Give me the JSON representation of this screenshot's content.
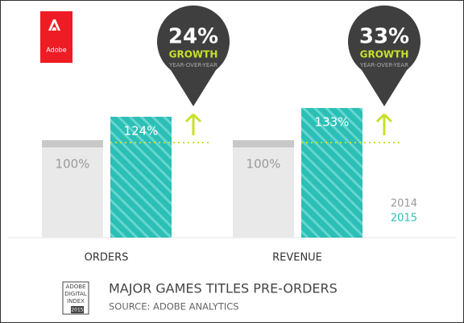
{
  "chart_data": {
    "type": "bar",
    "title": "MAJOR GAMES TITLES PRE-ORDERS",
    "subtitle": "SOURCE: ADOBE ANALYTICS",
    "logo": "Adobe",
    "badge": [
      "ADOBE",
      "DIGITAL",
      "INDEX",
      "2015"
    ],
    "categories": [
      "ORDERS",
      "REVENUE"
    ],
    "series": [
      {
        "name": "2014",
        "color": "#e9e9e9",
        "values": [
          100,
          100
        ],
        "value_labels": [
          "100%",
          "100%"
        ]
      },
      {
        "name": "2015",
        "color": "#2bbfb6",
        "values": [
          124,
          133
        ],
        "value_labels": [
          "124%",
          "133%"
        ]
      }
    ],
    "growth": {
      "values": [
        24,
        33
      ],
      "value_labels": [
        "24%",
        "33%"
      ],
      "label": "GROWTH",
      "sublabel": "YEAR-OVER-YEAR"
    }
  }
}
